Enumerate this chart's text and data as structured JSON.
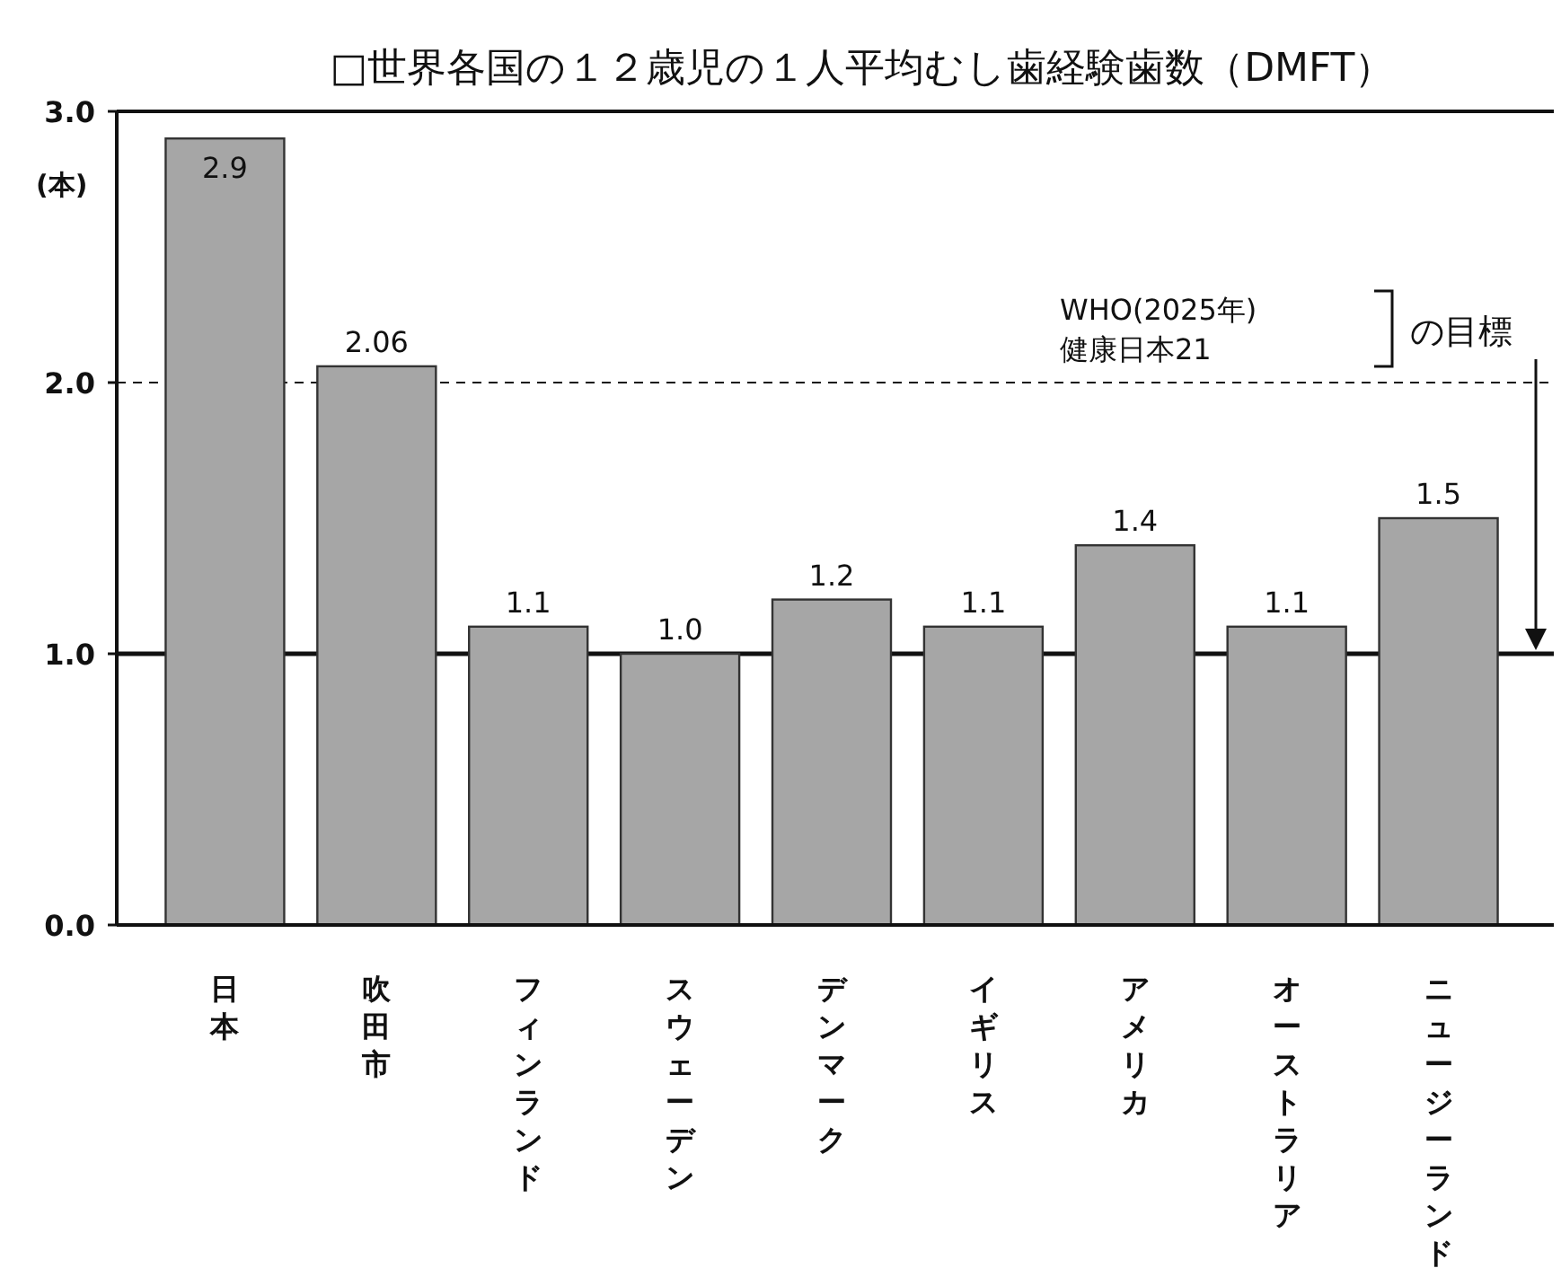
{
  "chart_data": {
    "type": "bar",
    "title": "□世界各国の１２歳児の１人平均むし歯経験歯数（DMFT）",
    "ylabel": "(本)",
    "categories": [
      "日本",
      "吹田市",
      "フィンランド",
      "スウェーデン",
      "デンマーク",
      "イギリス",
      "アメリカ",
      "オーストラリア",
      "ニュージーランド"
    ],
    "values": [
      2.9,
      2.06,
      1.1,
      1.0,
      1.2,
      1.1,
      1.4,
      1.1,
      1.5
    ],
    "color": "#a6a6a6",
    "ylim": [
      0,
      3.0
    ],
    "yticks": [
      {
        "value": 0,
        "label": "0.0"
      },
      {
        "value": 1,
        "label": "1.0"
      },
      {
        "value": 2,
        "label": "2.0"
      },
      {
        "value": 3,
        "label": "3.0"
      }
    ],
    "data_labels": true,
    "value_labels": [
      "2.9",
      "2.06",
      "1.1",
      "1.0",
      "1.2",
      "1.1",
      "1.4",
      "1.1",
      "1.5"
    ],
    "grid": false,
    "ref_lines": [
      {
        "axis": "y",
        "value": 2.0,
        "line_style": "dashed"
      },
      {
        "axis": "y",
        "value": 1.0,
        "line_style": "solid"
      }
    ],
    "annotations": [
      "WHO(2025年)",
      "健康日本21",
      "の目標"
    ]
  }
}
